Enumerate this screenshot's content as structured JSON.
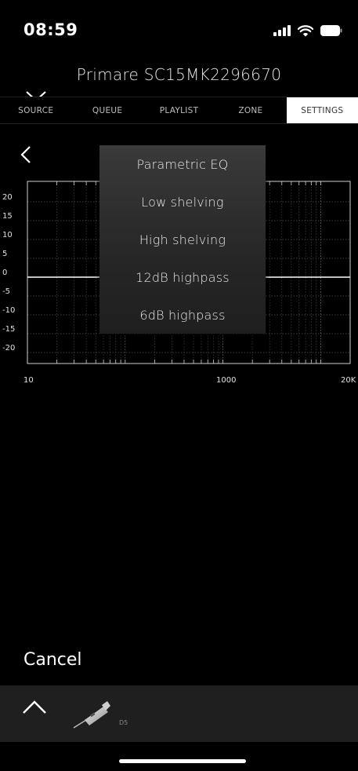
{
  "status": {
    "time": "08:59"
  },
  "header": {
    "device_name": "Primare SC15MK2296670"
  },
  "tabs": [
    {
      "label": "SOURCE",
      "active": false
    },
    {
      "label": "QUEUE",
      "active": false
    },
    {
      "label": "PLAYLIST",
      "active": false
    },
    {
      "label": "ZONE",
      "active": false
    },
    {
      "label": "SETTINGS",
      "active": true
    }
  ],
  "graph": {
    "y_ticks": [
      "20",
      "15",
      "10",
      "5",
      "0",
      "-5",
      "-10",
      "-15",
      "-20"
    ],
    "x_ticks": [
      "10",
      "1000",
      "20K"
    ]
  },
  "filter_menu": {
    "options": [
      "Parametric EQ",
      "Low shelving",
      "High shelving",
      "12dB highpass",
      "6dB highpass"
    ]
  },
  "footer": {
    "cancel_label": "Cancel"
  },
  "player": {
    "device_label": "D5"
  },
  "colors": {
    "background": "#000000",
    "player_bar": "#1f1f1f",
    "active_tab_bg": "#ffffff"
  }
}
